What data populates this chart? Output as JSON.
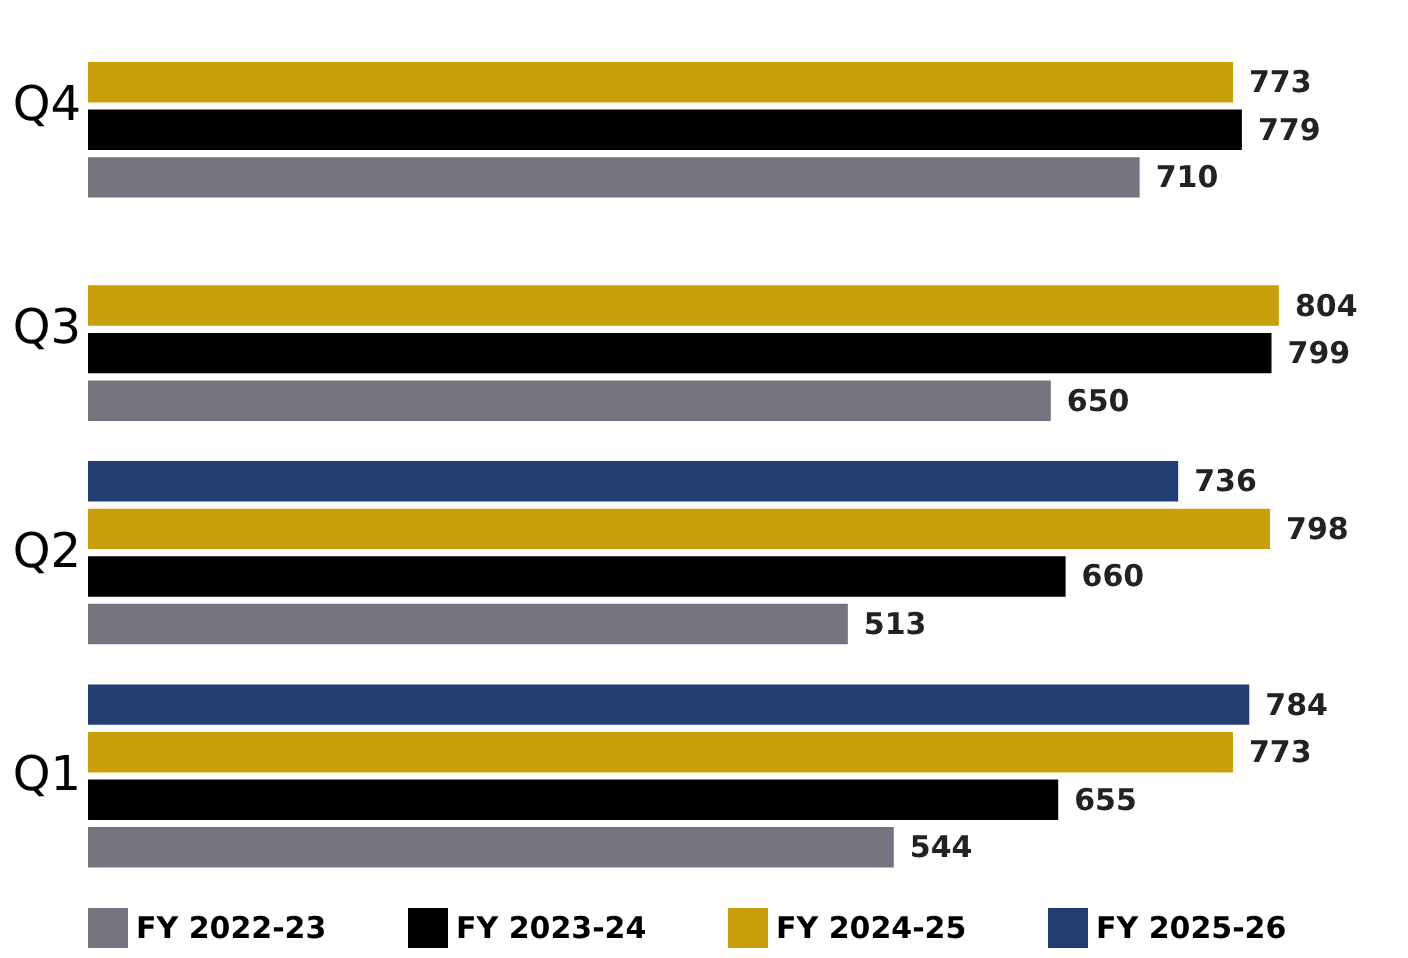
{
  "chart_data": {
    "type": "bar",
    "orientation": "horizontal",
    "categories": [
      "Q4",
      "Q3",
      "Q2",
      "Q1"
    ],
    "series": [
      {
        "name": "FY 2022-23",
        "color": "#76757f",
        "values": [
          710,
          650,
          513,
          544
        ]
      },
      {
        "name": "FY 2023-24",
        "color": "#000000",
        "values": [
          779,
          799,
          660,
          655
        ]
      },
      {
        "name": "FY 2024-25",
        "color": "#c9a00a",
        "values": [
          773,
          804,
          798,
          773
        ]
      },
      {
        "name": "FY 2025-26",
        "color": "#233e72",
        "values": [
          null,
          null,
          736,
          784
        ]
      }
    ],
    "data_labels": true,
    "legend": "bottom",
    "grid": false
  }
}
